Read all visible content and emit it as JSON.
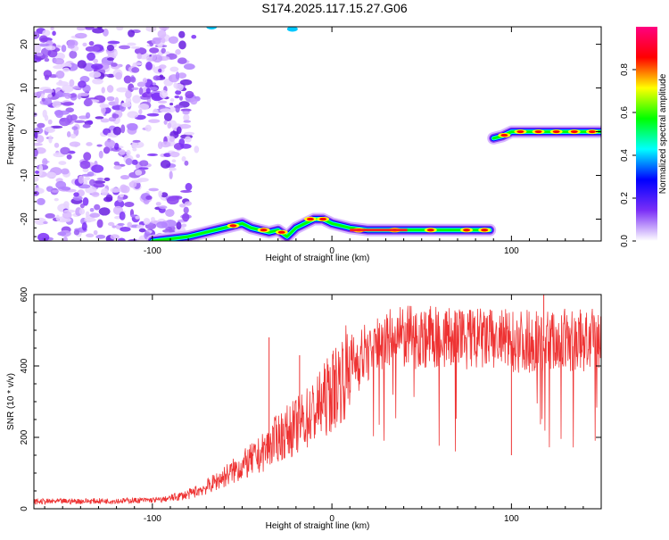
{
  "title": "S174.2025.117.15.27.G06",
  "chart_data": [
    {
      "type": "heatmap",
      "xlabel": "Height of straight line (km)",
      "ylabel": "Frequency (Hz)",
      "xlim": [
        -166,
        150
      ],
      "ylim": [
        -25,
        24
      ],
      "xticks": [
        -100,
        0,
        100
      ],
      "yticks": [
        -20,
        -10,
        0,
        10,
        20
      ],
      "colorbar": {
        "label": "Normalized spectral amplitude",
        "range": [
          0.0,
          1.0
        ],
        "ticks": [
          "0.0",
          "0.2",
          "0.4",
          "0.6",
          "0.8"
        ],
        "tick_values": [
          0.0,
          0.2,
          0.4,
          0.6,
          0.8
        ],
        "colors": [
          "#ffffff",
          "#7b2ff7",
          "#0000ff",
          "#00ffff",
          "#00ff00",
          "#ffff00",
          "#ff0000",
          "#ff0080"
        ]
      },
      "noise_region": {
        "x": [
          -166,
          -80
        ],
        "y": [
          -25,
          24
        ],
        "amplitude": 0.15
      },
      "track": {
        "x": [
          -100,
          -90,
          -80,
          -70,
          -60,
          -50,
          -45,
          -40,
          -35,
          -30,
          -25,
          -20,
          -15,
          -10,
          -5,
          0,
          10,
          20,
          40,
          60,
          80,
          88,
          90,
          95,
          100,
          110,
          120,
          130,
          140,
          150
        ],
        "y": [
          -25,
          -24.5,
          -24,
          -23,
          -22,
          -21,
          -22,
          -22.5,
          -23,
          -22.5,
          -24,
          -22,
          -21,
          -20,
          -20,
          -21,
          -22,
          -22.5,
          -22.5,
          -22.5,
          -22.5,
          -22.5,
          -1.5,
          -1,
          0,
          0,
          0,
          0,
          0,
          0
        ]
      }
    },
    {
      "type": "line",
      "xlabel": "Height of straight line (km)",
      "ylabel": "SNR (10 * v/v)",
      "xlim": [
        -166,
        150
      ],
      "ylim": [
        0,
        600
      ],
      "xticks": [
        -100,
        0,
        100
      ],
      "yticks": [
        0,
        200,
        400,
        600
      ],
      "color": "#ee3333",
      "baseline": {
        "x": [
          -166,
          -120,
          -95,
          -80,
          -70,
          -60,
          -50,
          -40,
          -30,
          -20,
          -10,
          0,
          10,
          20,
          30,
          40,
          60,
          80,
          100,
          120,
          150
        ],
        "y": [
          20,
          22,
          25,
          40,
          60,
          90,
          120,
          150,
          200,
          230,
          270,
          330,
          400,
          440,
          470,
          480,
          480,
          475,
          470,
          470,
          470
        ]
      },
      "spikes": [
        {
          "x": -35,
          "y": 480
        },
        {
          "x": -18,
          "y": 430
        },
        {
          "x": 100,
          "y": 150
        },
        {
          "x": 118,
          "y": 600
        }
      ]
    }
  ]
}
